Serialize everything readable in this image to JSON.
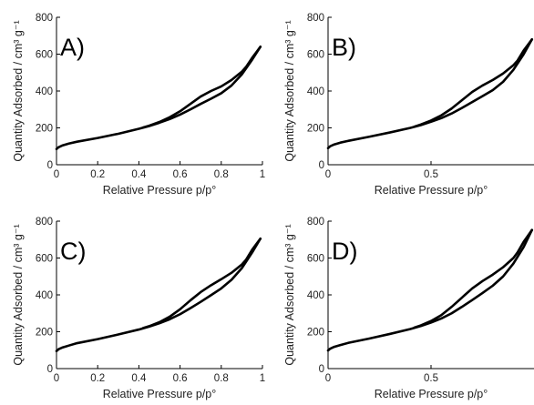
{
  "chart_data": [
    {
      "type": "line",
      "panel_label": "A)",
      "xlabel": "Relative Pressure p/p°",
      "ylabel": "Quantity Adsorbed / cm³ g⁻¹",
      "xlim": [
        0,
        1
      ],
      "ylim": [
        0,
        800
      ],
      "x_ticks": [
        0,
        0.2,
        0.4,
        0.6,
        0.8,
        1
      ],
      "x_tick_labels": [
        "0",
        "0.2",
        "0.4",
        "0.6",
        "0.8",
        "1"
      ],
      "y_ticks": [
        0,
        200,
        400,
        600,
        800
      ],
      "y_tick_labels": [
        "0",
        "200",
        "400",
        "600",
        "800"
      ],
      "grid": false,
      "series": [
        {
          "role": "adsorption",
          "color": "#000000",
          "x": [
            0.0,
            0.01,
            0.03,
            0.06,
            0.1,
            0.2,
            0.3,
            0.4,
            0.45,
            0.5,
            0.55,
            0.6,
            0.65,
            0.7,
            0.75,
            0.8,
            0.85,
            0.9,
            0.95,
            0.99
          ],
          "y": [
            85,
            95,
            105,
            115,
            125,
            145,
            168,
            195,
            210,
            228,
            248,
            272,
            300,
            330,
            358,
            388,
            430,
            490,
            570,
            640
          ]
        },
        {
          "role": "desorption",
          "color": "#000000",
          "x": [
            0.99,
            0.97,
            0.95,
            0.92,
            0.9,
            0.85,
            0.8,
            0.75,
            0.7,
            0.65,
            0.6,
            0.55,
            0.5,
            0.45,
            0.42
          ],
          "y": [
            640,
            610,
            580,
            530,
            505,
            460,
            425,
            400,
            370,
            330,
            290,
            258,
            232,
            212,
            202
          ]
        }
      ]
    },
    {
      "type": "line",
      "panel_label": "B)",
      "xlabel": "Relative Pressure p/p°",
      "ylabel": "Quantity Adsorbed / cm³ g⁻¹",
      "xlim": [
        0,
        1
      ],
      "ylim": [
        0,
        800
      ],
      "x_ticks": [
        0,
        0.5
      ],
      "x_tick_labels": [
        "0",
        "0.5"
      ],
      "y_ticks": [
        0,
        200,
        400,
        600,
        800
      ],
      "y_tick_labels": [
        "0",
        "200",
        "400",
        "600",
        "800"
      ],
      "grid": false,
      "series": [
        {
          "role": "adsorption",
          "color": "#000000",
          "x": [
            0.0,
            0.01,
            0.03,
            0.06,
            0.1,
            0.2,
            0.3,
            0.4,
            0.45,
            0.5,
            0.55,
            0.6,
            0.65,
            0.7,
            0.75,
            0.8,
            0.85,
            0.9,
            0.95,
            0.99
          ],
          "y": [
            90,
            100,
            110,
            120,
            130,
            152,
            175,
            200,
            215,
            233,
            253,
            278,
            308,
            340,
            372,
            405,
            450,
            515,
            600,
            680
          ]
        },
        {
          "role": "desorption",
          "color": "#000000",
          "x": [
            0.99,
            0.97,
            0.95,
            0.92,
            0.9,
            0.85,
            0.8,
            0.75,
            0.7,
            0.65,
            0.6,
            0.55,
            0.5,
            0.45,
            0.42
          ],
          "y": [
            680,
            650,
            620,
            565,
            540,
            495,
            460,
            430,
            395,
            350,
            305,
            268,
            240,
            218,
            207
          ]
        }
      ]
    },
    {
      "type": "line",
      "panel_label": "C)",
      "xlabel": "Relative Pressure p/p°",
      "ylabel": "Quantity Adsorbed / cm³ g⁻¹",
      "xlim": [
        0,
        1
      ],
      "ylim": [
        0,
        800
      ],
      "x_ticks": [
        0,
        0.2,
        0.4,
        0.6,
        0.8,
        1
      ],
      "x_tick_labels": [
        "0",
        "0.2",
        "0.4",
        "0.6",
        "0.8",
        "1"
      ],
      "y_ticks": [
        0,
        200,
        400,
        600,
        800
      ],
      "y_tick_labels": [
        "0",
        "200",
        "400",
        "600",
        "800"
      ],
      "grid": false,
      "series": [
        {
          "role": "adsorption",
          "color": "#000000",
          "x": [
            0.0,
            0.01,
            0.03,
            0.06,
            0.1,
            0.2,
            0.3,
            0.4,
            0.45,
            0.5,
            0.55,
            0.6,
            0.65,
            0.7,
            0.75,
            0.8,
            0.85,
            0.9,
            0.95,
            0.99
          ],
          "y": [
            95,
            105,
            115,
            125,
            138,
            160,
            185,
            212,
            228,
            246,
            268,
            295,
            328,
            362,
            398,
            435,
            482,
            545,
            630,
            705
          ]
        },
        {
          "role": "desorption",
          "color": "#000000",
          "x": [
            0.99,
            0.97,
            0.95,
            0.92,
            0.9,
            0.85,
            0.8,
            0.75,
            0.7,
            0.65,
            0.6,
            0.55,
            0.5,
            0.45,
            0.42
          ],
          "y": [
            705,
            675,
            645,
            590,
            565,
            520,
            485,
            452,
            415,
            370,
            322,
            282,
            252,
            230,
            220
          ]
        }
      ]
    },
    {
      "type": "line",
      "panel_label": "D)",
      "xlabel": "Relative Pressure p/p°",
      "ylabel": "Quantity Adsorbed / cm³ g⁻¹",
      "xlim": [
        0,
        1
      ],
      "ylim": [
        0,
        800
      ],
      "x_ticks": [
        0,
        0.5
      ],
      "x_tick_labels": [
        "0",
        "0.5"
      ],
      "y_ticks": [
        0,
        200,
        400,
        600,
        800
      ],
      "y_tick_labels": [
        "0",
        "200",
        "400",
        "600",
        "800"
      ],
      "grid": false,
      "series": [
        {
          "role": "adsorption",
          "color": "#000000",
          "x": [
            0.0,
            0.01,
            0.03,
            0.06,
            0.1,
            0.2,
            0.3,
            0.4,
            0.45,
            0.5,
            0.55,
            0.6,
            0.65,
            0.7,
            0.75,
            0.8,
            0.85,
            0.9,
            0.95,
            0.99
          ],
          "y": [
            98,
            108,
            118,
            128,
            140,
            163,
            188,
            215,
            231,
            250,
            272,
            300,
            335,
            372,
            410,
            450,
            500,
            570,
            660,
            752
          ]
        },
        {
          "role": "desorption",
          "color": "#000000",
          "x": [
            0.99,
            0.97,
            0.95,
            0.92,
            0.9,
            0.85,
            0.8,
            0.75,
            0.7,
            0.65,
            0.6,
            0.55,
            0.5,
            0.45,
            0.42
          ],
          "y": [
            752,
            720,
            688,
            630,
            600,
            550,
            510,
            475,
            435,
            385,
            335,
            290,
            258,
            234,
            223
          ]
        }
      ]
    }
  ]
}
